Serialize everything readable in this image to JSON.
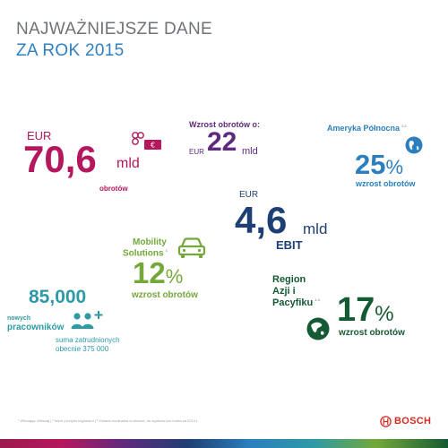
{
  "title": {
    "line1": "NAJWAŻNIEJSZE DANE",
    "line2": "ZA ROK 2015"
  },
  "sales": {
    "currency": "EUR",
    "value": "70,6",
    "unit": "mld",
    "label": "obrotów"
  },
  "growth": {
    "label": "Wzrost obrotów o:",
    "currency": "EUR",
    "value": "22",
    "unit": "mld"
  },
  "north_america": {
    "region": "Ameryka Północna",
    "note": "1,2",
    "value": "25",
    "unit": "%",
    "label": "wzrost obrotów"
  },
  "ebit": {
    "currency": "EUR",
    "value": "4,6",
    "unit": "mld",
    "label": "EBIT"
  },
  "mobility": {
    "line1": "Mobility",
    "line2": "Solutions",
    "note": "1",
    "value": "12",
    "unit": "%",
    "label": "wzrost obrotów"
  },
  "asia": {
    "line1": "Region",
    "line2": "Azji i",
    "line3": "Pacyfiku",
    "note": "1,3",
    "value": "17",
    "unit": "%",
    "label": "wzrost obrotów"
  },
  "employees": {
    "value": "85,000",
    "label1": "nowych",
    "label2": "pracowników",
    "total1": "suma zatrudnionych",
    "total2": "obecnie 375 000"
  },
  "footnote": "¹ Wliczając: Mieszaj  |  ² Wzór z innymi regionami  |  ³ Zmiana nominalna w obrocie; do wyników pro forma za 2014 r.",
  "brand": "BOSCH",
  "colors": {
    "magenta": "#b5175e",
    "navy": "#1e3f73",
    "purple": "#5e2a7e",
    "blue": "#2b7fbe",
    "green": "#74a83a",
    "teal": "#2d9aa5",
    "dark_green": "#145a32",
    "bosch_red": "#d52b1e"
  },
  "icons": [
    "coins-banknote-icon",
    "globe-americas-icon",
    "car-icon",
    "people-add-icon",
    "globe-asia-icon",
    "bosch-logo-icon"
  ]
}
